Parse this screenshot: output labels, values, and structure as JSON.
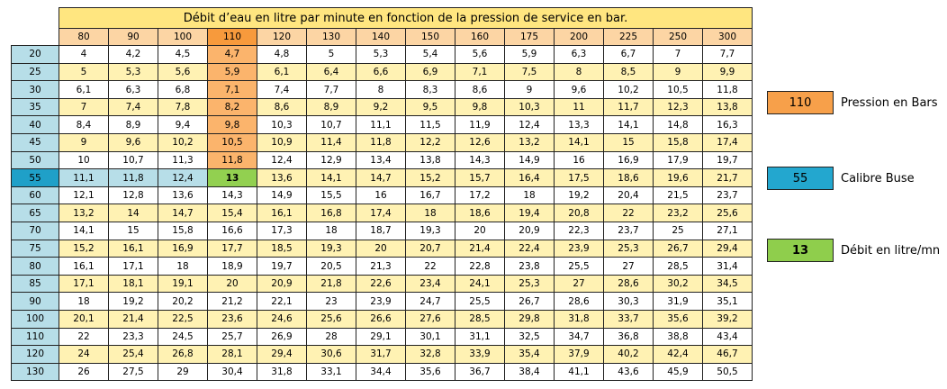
{
  "table": {
    "title": "Débit d’eau en litre par minute en fonction de la pression de service en bar.",
    "columns": [
      "80",
      "90",
      "100",
      "110",
      "120",
      "130",
      "140",
      "150",
      "160",
      "175",
      "200",
      "225",
      "250",
      "300"
    ],
    "rows": [
      {
        "label": "20",
        "cells": [
          "4",
          "4,2",
          "4,5",
          "4,7",
          "4,8",
          "5",
          "5,3",
          "5,4",
          "5,6",
          "5,9",
          "6,3",
          "6,7",
          "7",
          "7,7"
        ]
      },
      {
        "label": "25",
        "cells": [
          "5",
          "5,3",
          "5,6",
          "5,9",
          "6,1",
          "6,4",
          "6,6",
          "6,9",
          "7,1",
          "7,5",
          "8",
          "8,5",
          "9",
          "9,9"
        ]
      },
      {
        "label": "30",
        "cells": [
          "6,1",
          "6,3",
          "6,8",
          "7,1",
          "7,4",
          "7,7",
          "8",
          "8,3",
          "8,6",
          "9",
          "9,6",
          "10,2",
          "10,5",
          "11,8"
        ]
      },
      {
        "label": "35",
        "cells": [
          "7",
          "7,4",
          "7,8",
          "8,2",
          "8,6",
          "8,9",
          "9,2",
          "9,5",
          "9,8",
          "10,3",
          "11",
          "11,7",
          "12,3",
          "13,8"
        ]
      },
      {
        "label": "40",
        "cells": [
          "8,4",
          "8,9",
          "9,4",
          "9,8",
          "10,3",
          "10,7",
          "11,1",
          "11,5",
          "11,9",
          "12,4",
          "13,3",
          "14,1",
          "14,8",
          "16,3"
        ]
      },
      {
        "label": "45",
        "cells": [
          "9",
          "9,6",
          "10,2",
          "10,5",
          "10,9",
          "11,4",
          "11,8",
          "12,2",
          "12,6",
          "13,2",
          "14,1",
          "15",
          "15,8",
          "17,4"
        ]
      },
      {
        "label": "50",
        "cells": [
          "10",
          "10,7",
          "11,3",
          "11,8",
          "12,4",
          "12,9",
          "13,4",
          "13,8",
          "14,3",
          "14,9",
          "16",
          "16,9",
          "17,9",
          "19,7"
        ]
      },
      {
        "label": "55",
        "cells": [
          "11,1",
          "11,8",
          "12,4",
          "13",
          "13,6",
          "14,1",
          "14,7",
          "15,2",
          "15,7",
          "16,4",
          "17,5",
          "18,6",
          "19,6",
          "21,7"
        ]
      },
      {
        "label": "60",
        "cells": [
          "12,1",
          "12,8",
          "13,6",
          "14,3",
          "14,9",
          "15,5",
          "16",
          "16,7",
          "17,2",
          "18",
          "19,2",
          "20,4",
          "21,5",
          "23,7"
        ]
      },
      {
        "label": "65",
        "cells": [
          "13,2",
          "14",
          "14,7",
          "15,4",
          "16,1",
          "16,8",
          "17,4",
          "18",
          "18,6",
          "19,4",
          "20,8",
          "22",
          "23,2",
          "25,6"
        ]
      },
      {
        "label": "70",
        "cells": [
          "14,1",
          "15",
          "15,8",
          "16,6",
          "17,3",
          "18",
          "18,7",
          "19,3",
          "20",
          "20,9",
          "22,3",
          "23,7",
          "25",
          "27,1"
        ]
      },
      {
        "label": "75",
        "cells": [
          "15,2",
          "16,1",
          "16,9",
          "17,7",
          "18,5",
          "19,3",
          "20",
          "20,7",
          "21,4",
          "22,4",
          "23,9",
          "25,3",
          "26,7",
          "29,4"
        ]
      },
      {
        "label": "80",
        "cells": [
          "16,1",
          "17,1",
          "18",
          "18,9",
          "19,7",
          "20,5",
          "21,3",
          "22",
          "22,8",
          "23,8",
          "25,5",
          "27",
          "28,5",
          "31,4"
        ]
      },
      {
        "label": "85",
        "cells": [
          "17,1",
          "18,1",
          "19,1",
          "20",
          "20,9",
          "21,8",
          "22,6",
          "23,4",
          "24,1",
          "25,3",
          "27",
          "28,6",
          "30,2",
          "34,5"
        ]
      },
      {
        "label": "90",
        "cells": [
          "18",
          "19,2",
          "20,2",
          "21,2",
          "22,1",
          "23",
          "23,9",
          "24,7",
          "25,5",
          "26,7",
          "28,6",
          "30,3",
          "31,9",
          "35,1"
        ]
      },
      {
        "label": "100",
        "cells": [
          "20,1",
          "21,4",
          "22,5",
          "23,6",
          "24,6",
          "25,6",
          "26,6",
          "27,6",
          "28,5",
          "29,8",
          "31,8",
          "33,7",
          "35,6",
          "39,2"
        ]
      },
      {
        "label": "110",
        "cells": [
          "22",
          "23,3",
          "24,5",
          "25,7",
          "26,9",
          "28",
          "29,1",
          "30,1",
          "31,1",
          "32,5",
          "34,7",
          "36,8",
          "38,8",
          "43,4"
        ]
      },
      {
        "label": "120",
        "cells": [
          "24",
          "25,4",
          "26,8",
          "28,1",
          "29,4",
          "30,6",
          "31,7",
          "32,8",
          "33,9",
          "35,4",
          "37,9",
          "40,2",
          "42,4",
          "46,7"
        ]
      },
      {
        "label": "130",
        "cells": [
          "26",
          "27,5",
          "29",
          "30,4",
          "31,8",
          "33,1",
          "34,4",
          "35,6",
          "36,7",
          "38,4",
          "41,1",
          "43,6",
          "45,9",
          "50,5"
        ]
      }
    ]
  },
  "legend": [
    {
      "sample": "110",
      "label": "Pression en Bars"
    },
    {
      "sample": "55",
      "label": "Calibre Buse"
    },
    {
      "sample": "13",
      "label": "Débit en litre/mn"
    }
  ]
}
